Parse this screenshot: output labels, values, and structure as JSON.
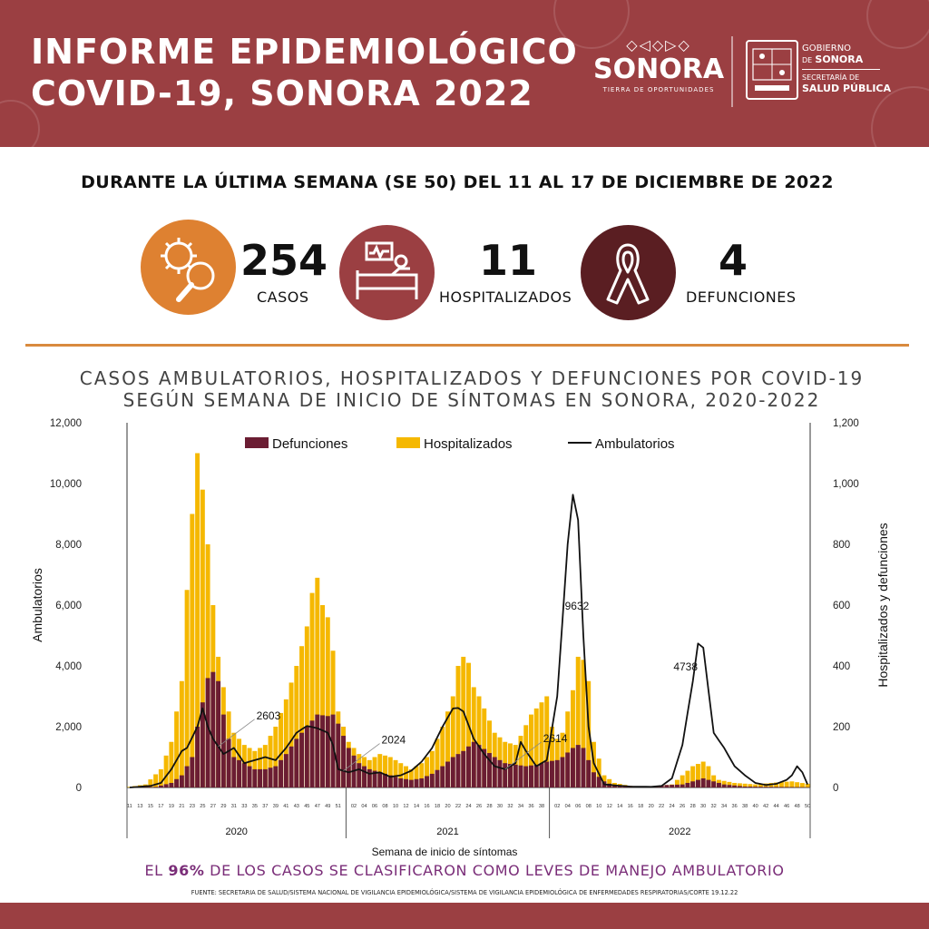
{
  "header": {
    "title_line1": "INFORME EPIDEMIOLÓGICO",
    "title_line2": "COVID-19, SONORA 2022",
    "logo_pattern": "◇◁◇▷◇",
    "logo_name": "SONORA",
    "logo_tagline": "TIERRA DE OPORTUNIDADES",
    "gov_line1": "GOBIERNO",
    "gov_line2_small": "DE",
    "gov_line2": "SONORA",
    "gov_line3": "SECRETARÍA DE",
    "gov_line4": "SALUD PÚBLICA",
    "color": "#9b3f42"
  },
  "subtitle": "DURANTE LA ÚLTIMA SEMANA (SE 50) DEL 11 AL 17 DE DICIEMBRE DE 2022",
  "stats": [
    {
      "value": "254",
      "label": "CASOS",
      "icon": "virus-magnifier-icon",
      "color": "#de8131"
    },
    {
      "value": "11",
      "label": "HOSPITALIZADOS",
      "icon": "hospital-bed-icon",
      "color": "#9b3f42"
    },
    {
      "value": "4",
      "label": "DEFUNCIONES",
      "icon": "ribbon-icon",
      "color": "#5a1e22"
    }
  ],
  "chart_title_line1": "CASOS AMBULATORIOS, HOSPITALIZADOS Y DEFUNCIONES POR COVID-19",
  "chart_title_line2": "SEGÚN SEMANA DE INICIO DE SÍNTOMAS EN SONORA, 2020-2022",
  "footnote_pre": "EL ",
  "footnote_bold": "96%",
  "footnote_post": " DE LOS CASOS SE CLASIFICARON COMO LEVES DE MANEJO AMBULATORIO",
  "source": "FUENTE: SECRETARIA DE SALUD/SISTEMA NACIONAL DE VIGILANCIA EPIDEMIOLÓGICA/SISTEMA DE VIGILANCIA EPIDEMIOLÓGICA DE ENFERMEDADES RESPIRATORIAS/CORTE 19.12.22",
  "chart_data": {
    "type": "bar",
    "ylabel": "Ambulatorios",
    "ylabel_right": "Hospitalizados y defunciones",
    "xlabel": "Semana de inicio de síntomas",
    "ylim": [
      0,
      12000
    ],
    "ylim_right": [
      0,
      1200
    ],
    "yticks": [
      "0",
      "2,000",
      "4,000",
      "6,000",
      "8,000",
      "10,000",
      "12,000"
    ],
    "yticks_right": [
      "0",
      "200",
      "400",
      "600",
      "800",
      "1,000",
      "1,200"
    ],
    "years": [
      "2020",
      "2021",
      "2022"
    ],
    "colors": {
      "defunciones": "#6b1d33",
      "hospitalizados": "#f5b800",
      "ambulatorios": "#111111"
    },
    "legend": [
      "Defunciones",
      "Hospitalizados",
      "Ambulatorios"
    ],
    "annotations": [
      {
        "label": "2603",
        "year": 2020,
        "week": 28
      },
      {
        "label": "2024",
        "year": 2020,
        "week": 52
      },
      {
        "label": "2614",
        "year": 2021,
        "week": 31
      },
      {
        "label": "9632",
        "year": 2022,
        "week": 3
      },
      {
        "label": "4738",
        "year": 2022,
        "week": 28
      }
    ],
    "series": [
      {
        "name": "Defunciones",
        "axis": "right",
        "keyframes": [
          [
            0,
            0
          ],
          [
            5,
            2
          ],
          [
            8,
            15
          ],
          [
            10,
            40
          ],
          [
            12,
            100
          ],
          [
            13,
            200
          ],
          [
            14,
            280
          ],
          [
            15,
            360
          ],
          [
            16,
            380
          ],
          [
            17,
            350
          ],
          [
            18,
            240
          ],
          [
            19,
            160
          ],
          [
            20,
            100
          ],
          [
            22,
            80
          ],
          [
            24,
            60
          ],
          [
            26,
            60
          ],
          [
            28,
            70
          ],
          [
            30,
            110
          ],
          [
            32,
            160
          ],
          [
            34,
            200
          ],
          [
            36,
            240
          ],
          [
            38,
            235
          ],
          [
            39,
            240
          ],
          [
            40,
            210
          ],
          [
            42,
            130
          ],
          [
            44,
            80
          ],
          [
            46,
            60
          ],
          [
            48,
            50
          ],
          [
            50,
            40
          ],
          [
            52,
            30
          ],
          [
            54,
            25
          ],
          [
            56,
            30
          ],
          [
            58,
            45
          ],
          [
            60,
            70
          ],
          [
            62,
            100
          ],
          [
            64,
            120
          ],
          [
            66,
            150
          ],
          [
            67,
            140
          ],
          [
            70,
            100
          ],
          [
            72,
            80
          ],
          [
            74,
            75
          ],
          [
            76,
            70
          ],
          [
            78,
            75
          ],
          [
            80,
            85
          ],
          [
            82,
            90
          ],
          [
            83,
            100
          ],
          [
            85,
            130
          ],
          [
            86,
            140
          ],
          [
            87,
            130
          ],
          [
            89,
            50
          ],
          [
            91,
            20
          ],
          [
            93,
            5
          ],
          [
            98,
            5
          ],
          [
            106,
            10
          ],
          [
            108,
            20
          ],
          [
            110,
            30
          ],
          [
            112,
            20
          ],
          [
            114,
            10
          ],
          [
            118,
            3
          ],
          [
            124,
            2
          ],
          [
            130,
            1
          ]
        ]
      },
      {
        "name": "Hospitalizados",
        "axis": "right",
        "keyframes": [
          [
            0,
            2
          ],
          [
            3,
            10
          ],
          [
            6,
            60
          ],
          [
            8,
            150
          ],
          [
            10,
            350
          ],
          [
            11,
            650
          ],
          [
            12,
            900
          ],
          [
            13,
            1100
          ],
          [
            14,
            980
          ],
          [
            15,
            800
          ],
          [
            16,
            600
          ],
          [
            17,
            430
          ],
          [
            18,
            330
          ],
          [
            19,
            250
          ],
          [
            20,
            180
          ],
          [
            22,
            140
          ],
          [
            24,
            120
          ],
          [
            26,
            140
          ],
          [
            28,
            200
          ],
          [
            30,
            290
          ],
          [
            32,
            400
          ],
          [
            34,
            530
          ],
          [
            35,
            640
          ],
          [
            36,
            690
          ],
          [
            37,
            600
          ],
          [
            38,
            560
          ],
          [
            39,
            450
          ],
          [
            40,
            250
          ],
          [
            42,
            150
          ],
          [
            44,
            110
          ],
          [
            46,
            90
          ],
          [
            48,
            110
          ],
          [
            50,
            100
          ],
          [
            52,
            80
          ],
          [
            54,
            60
          ],
          [
            56,
            80
          ],
          [
            58,
            120
          ],
          [
            60,
            200
          ],
          [
            62,
            300
          ],
          [
            63,
            400
          ],
          [
            64,
            430
          ],
          [
            65,
            410
          ],
          [
            66,
            330
          ],
          [
            67,
            300
          ],
          [
            68,
            260
          ],
          [
            70,
            180
          ],
          [
            72,
            150
          ],
          [
            74,
            140
          ],
          [
            75,
            170
          ],
          [
            77,
            240
          ],
          [
            79,
            280
          ],
          [
            80,
            300
          ],
          [
            81,
            200
          ],
          [
            82,
            160
          ],
          [
            83,
            180
          ],
          [
            85,
            320
          ],
          [
            86,
            430
          ],
          [
            87,
            420
          ],
          [
            88,
            350
          ],
          [
            89,
            150
          ],
          [
            91,
            40
          ],
          [
            93,
            15
          ],
          [
            96,
            5
          ],
          [
            100,
            3
          ],
          [
            104,
            10
          ],
          [
            106,
            40
          ],
          [
            108,
            70
          ],
          [
            110,
            85
          ],
          [
            111,
            70
          ],
          [
            112,
            40
          ],
          [
            113,
            25
          ],
          [
            116,
            15
          ],
          [
            120,
            10
          ],
          [
            125,
            18
          ],
          [
            127,
            20
          ],
          [
            130,
            12
          ]
        ]
      },
      {
        "name": "Ambulatorios",
        "axis": "left",
        "keyframes": [
          [
            0,
            0
          ],
          [
            4,
            50
          ],
          [
            6,
            150
          ],
          [
            8,
            600
          ],
          [
            10,
            1200
          ],
          [
            11,
            1300
          ],
          [
            13,
            2000
          ],
          [
            14,
            2603
          ],
          [
            15,
            2000
          ],
          [
            16,
            1600
          ],
          [
            18,
            1100
          ],
          [
            20,
            1300
          ],
          [
            22,
            800
          ],
          [
            24,
            900
          ],
          [
            26,
            1000
          ],
          [
            28,
            900
          ],
          [
            30,
            1300
          ],
          [
            32,
            1800
          ],
          [
            34,
            2024
          ],
          [
            36,
            1950
          ],
          [
            38,
            1800
          ],
          [
            39,
            1400
          ],
          [
            40,
            600
          ],
          [
            42,
            500
          ],
          [
            44,
            600
          ],
          [
            46,
            450
          ],
          [
            48,
            500
          ],
          [
            50,
            350
          ],
          [
            52,
            400
          ],
          [
            54,
            550
          ],
          [
            56,
            850
          ],
          [
            58,
            1300
          ],
          [
            60,
            2000
          ],
          [
            62,
            2600
          ],
          [
            63,
            2614
          ],
          [
            64,
            2500
          ],
          [
            66,
            1600
          ],
          [
            68,
            1100
          ],
          [
            70,
            700
          ],
          [
            72,
            600
          ],
          [
            74,
            800
          ],
          [
            75,
            1500
          ],
          [
            76,
            1200
          ],
          [
            78,
            700
          ],
          [
            80,
            900
          ],
          [
            82,
            3000
          ],
          [
            84,
            8000
          ],
          [
            85,
            9632
          ],
          [
            86,
            8800
          ],
          [
            87,
            5000
          ],
          [
            88,
            2000
          ],
          [
            89,
            800
          ],
          [
            91,
            100
          ],
          [
            96,
            30
          ],
          [
            100,
            20
          ],
          [
            102,
            50
          ],
          [
            104,
            300
          ],
          [
            106,
            1400
          ],
          [
            108,
            3500
          ],
          [
            109,
            4738
          ],
          [
            110,
            4600
          ],
          [
            111,
            3200
          ],
          [
            112,
            1800
          ],
          [
            114,
            1300
          ],
          [
            116,
            700
          ],
          [
            118,
            400
          ],
          [
            120,
            150
          ],
          [
            122,
            80
          ],
          [
            124,
            120
          ],
          [
            126,
            250
          ],
          [
            127,
            400
          ],
          [
            128,
            700
          ],
          [
            129,
            500
          ],
          [
            130,
            100
          ]
        ]
      }
    ]
  }
}
